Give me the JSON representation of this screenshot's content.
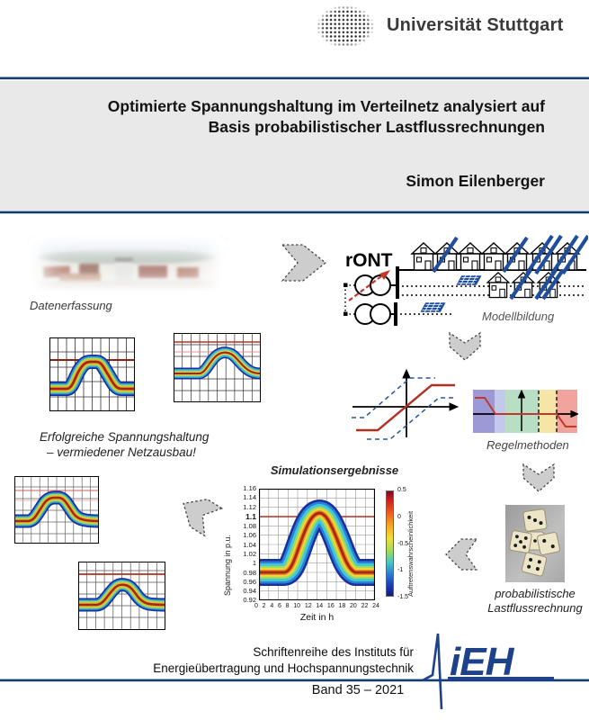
{
  "header": {
    "university_name": "Universität Stuttgart"
  },
  "title_block": {
    "title_line1": "Optimierte Spannungshaltung im Verteilnetz analysiert auf",
    "title_line2": "Basis probabilistischer Lastflussrechnungen",
    "author": "Simon Eilenberger"
  },
  "flow": {
    "step_datenerfassung": "Datenerfassung",
    "step_modellbildung": "Modellbildung",
    "ront_label": "rONT",
    "result_line1": "Erfolgreiche Spannungshaltung",
    "result_line2": "– vermiedener Netzausbau!",
    "step_regelmethoden": "Regelmethoden",
    "step_probabilistisch_line1": "probabilistische",
    "step_probabilistisch_line2": "Lastflussrechnung"
  },
  "chart_data": {
    "type": "area",
    "title": "Simulationsergebnisse",
    "xlabel": "Zeit in h",
    "ylabel": "Spannung in p.u.",
    "x_ticks": [
      "0",
      "2",
      "4",
      "6",
      "8",
      "10",
      "12",
      "14",
      "16",
      "18",
      "20",
      "22",
      "24"
    ],
    "y_ticks": [
      "1.16",
      "1.14",
      "1.12",
      "1.1",
      "1.08",
      "1.06",
      "1.04",
      "1.02",
      "1",
      "0.98",
      "0.96",
      "0.94",
      "0.92"
    ],
    "xlim": [
      0,
      24
    ],
    "ylim": [
      0.92,
      1.16
    ],
    "grid": true,
    "limit_line_y": 1.1,
    "band": {
      "description": "probability-density band of node voltage over one day; jet colormap, dark-red core = highest occurrence probability, blue fringe = lowest",
      "x": [
        0,
        2,
        4,
        6,
        8,
        10,
        12,
        13,
        14,
        16,
        18,
        20,
        22,
        24
      ],
      "center": [
        0.98,
        0.98,
        0.98,
        0.98,
        1.0,
        1.06,
        1.1,
        1.11,
        1.1,
        1.05,
        0.99,
        0.98,
        0.98,
        0.98
      ],
      "half_width": 0.025
    },
    "colorbar": {
      "label": "Auftretenswahrscheinlichkeit",
      "ticks": [
        "0.5",
        "0",
        "-0.5",
        "-1",
        "-1.5"
      ]
    }
  },
  "footer": {
    "series_line1": "Schriftenreihe des Instituts für",
    "series_line2": "Energieübertragung und Hochspannungstechnik",
    "volume": "Band 35 – 2021",
    "institute_logo": "iEH"
  },
  "colors": {
    "rule_navy": "#1b3a66",
    "ieh_blue": "#1d4289",
    "pv_blue": "#1f4e9c",
    "limit_red": "#b03020",
    "arrow_gray": "#cdcdcd",
    "title_bg": "#e9e9e9"
  }
}
